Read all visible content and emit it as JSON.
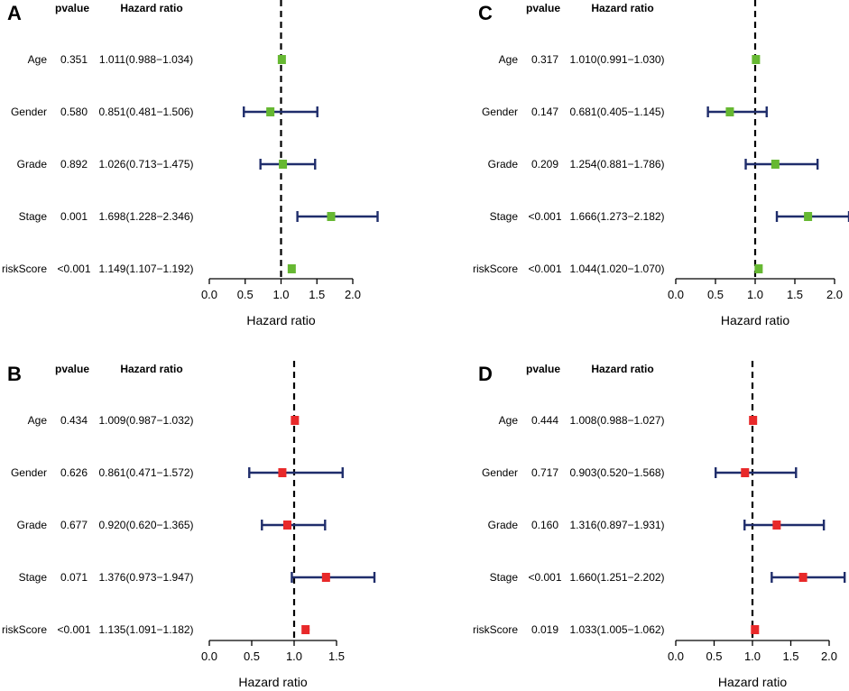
{
  "figure": {
    "pvalue_header": "pvalue",
    "hr_header": "Hazard ratio",
    "axis_title": "Hazard ratio"
  },
  "chart_data": [
    {
      "type": "forest",
      "panel": "A",
      "xlabel": "Hazard ratio",
      "xlim": [
        0.0,
        2.0
      ],
      "xticks": [
        "0.0",
        "0.5",
        "1.0",
        "1.5",
        "2.0"
      ],
      "reference_line": 1.0,
      "marker_color": "#66b832",
      "rows": [
        {
          "label": "Age",
          "pvalue": "0.351",
          "hr_text": "1.011(0.988−1.034)",
          "hr": 1.011,
          "low": 0.988,
          "high": 1.034
        },
        {
          "label": "Gender",
          "pvalue": "0.580",
          "hr_text": "0.851(0.481−1.506)",
          "hr": 0.851,
          "low": 0.481,
          "high": 1.506
        },
        {
          "label": "Grade",
          "pvalue": "0.892",
          "hr_text": "1.026(0.713−1.475)",
          "hr": 1.026,
          "low": 0.713,
          "high": 1.475
        },
        {
          "label": "Stage",
          "pvalue": "0.001",
          "hr_text": "1.698(1.228−2.346)",
          "hr": 1.698,
          "low": 1.228,
          "high": 2.346
        },
        {
          "label": "riskScore",
          "pvalue": "<0.001",
          "hr_text": "1.149(1.107−1.192)",
          "hr": 1.149,
          "low": 1.107,
          "high": 1.192
        }
      ]
    },
    {
      "type": "forest",
      "panel": "B",
      "xlabel": "Hazard ratio",
      "xlim": [
        0.0,
        1.5
      ],
      "xticks": [
        "0.0",
        "0.5",
        "1.0",
        "1.5"
      ],
      "reference_line": 1.0,
      "marker_color": "#e8292a",
      "rows": [
        {
          "label": "Age",
          "pvalue": "0.434",
          "hr_text": "1.009(0.987−1.032)",
          "hr": 1.009,
          "low": 0.987,
          "high": 1.032
        },
        {
          "label": "Gender",
          "pvalue": "0.626",
          "hr_text": "0.861(0.471−1.572)",
          "hr": 0.861,
          "low": 0.471,
          "high": 1.572
        },
        {
          "label": "Grade",
          "pvalue": "0.677",
          "hr_text": "0.920(0.620−1.365)",
          "hr": 0.92,
          "low": 0.62,
          "high": 1.365
        },
        {
          "label": "Stage",
          "pvalue": "0.071",
          "hr_text": "1.376(0.973−1.947)",
          "hr": 1.376,
          "low": 0.973,
          "high": 1.947
        },
        {
          "label": "riskScore",
          "pvalue": "<0.001",
          "hr_text": "1.135(1.091−1.182)",
          "hr": 1.135,
          "low": 1.091,
          "high": 1.182
        }
      ]
    },
    {
      "type": "forest",
      "panel": "C",
      "xlabel": "Hazard ratio",
      "xlim": [
        0.0,
        2.0
      ],
      "xticks": [
        "0.0",
        "0.5",
        "1.0",
        "1.5",
        "2.0"
      ],
      "reference_line": 1.0,
      "marker_color": "#66b832",
      "rows": [
        {
          "label": "Age",
          "pvalue": "0.317",
          "hr_text": "1.010(0.991−1.030)",
          "hr": 1.01,
          "low": 0.991,
          "high": 1.03
        },
        {
          "label": "Gender",
          "pvalue": "0.147",
          "hr_text": "0.681(0.405−1.145)",
          "hr": 0.681,
          "low": 0.405,
          "high": 1.145
        },
        {
          "label": "Grade",
          "pvalue": "0.209",
          "hr_text": "1.254(0.881−1.786)",
          "hr": 1.254,
          "low": 0.881,
          "high": 1.786
        },
        {
          "label": "Stage",
          "pvalue": "<0.001",
          "hr_text": "1.666(1.273−2.182)",
          "hr": 1.666,
          "low": 1.273,
          "high": 2.182
        },
        {
          "label": "riskScore",
          "pvalue": "<0.001",
          "hr_text": "1.044(1.020−1.070)",
          "hr": 1.044,
          "low": 1.02,
          "high": 1.07
        }
      ]
    },
    {
      "type": "forest",
      "panel": "D",
      "xlabel": "Hazard ratio",
      "xlim": [
        0.0,
        2.0
      ],
      "xticks": [
        "0.0",
        "0.5",
        "1.0",
        "1.5",
        "2.0"
      ],
      "reference_line": 1.0,
      "marker_color": "#e8292a",
      "rows": [
        {
          "label": "Age",
          "pvalue": "0.444",
          "hr_text": "1.008(0.988−1.027)",
          "hr": 1.008,
          "low": 0.988,
          "high": 1.027
        },
        {
          "label": "Gender",
          "pvalue": "0.717",
          "hr_text": "0.903(0.520−1.568)",
          "hr": 0.903,
          "low": 0.52,
          "high": 1.568
        },
        {
          "label": "Grade",
          "pvalue": "0.160",
          "hr_text": "1.316(0.897−1.931)",
          "hr": 1.316,
          "low": 0.897,
          "high": 1.931
        },
        {
          "label": "Stage",
          "pvalue": "<0.001",
          "hr_text": "1.660(1.251−2.202)",
          "hr": 1.66,
          "low": 1.251,
          "high": 2.202
        },
        {
          "label": "riskScore",
          "pvalue": "0.019",
          "hr_text": "1.033(1.005−1.062)",
          "hr": 1.033,
          "low": 1.005,
          "high": 1.062
        }
      ]
    }
  ],
  "colors": {
    "ci_line": "#1f2d6b",
    "reference": "#000000",
    "axis": "#000000"
  }
}
